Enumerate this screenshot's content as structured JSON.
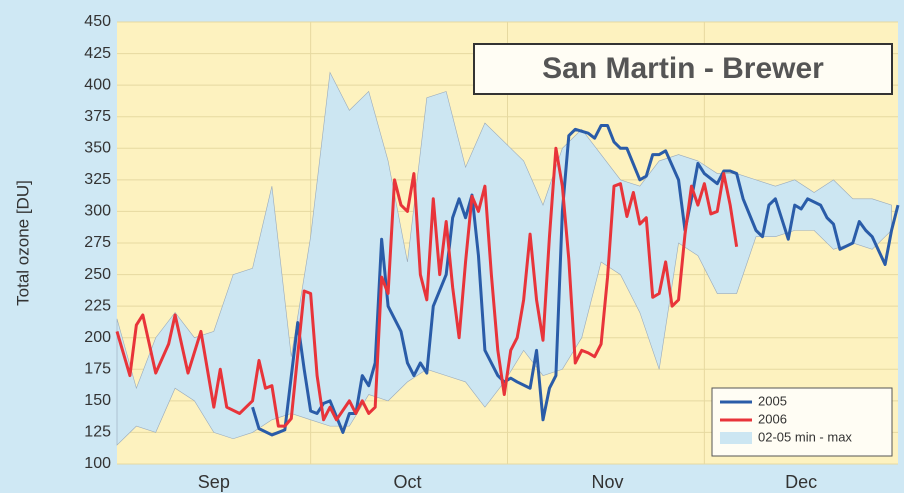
{
  "chart_data": {
    "type": "line",
    "title": "San Martin - Brewer",
    "y_label": "Total ozone [DU]",
    "xlim": [
      0,
      121
    ],
    "xticks": [
      {
        "value": 15,
        "label": "Sep"
      },
      {
        "value": 45,
        "label": "Oct"
      },
      {
        "value": 76,
        "label": "Nov"
      },
      {
        "value": 106,
        "label": "Dec"
      }
    ],
    "ylim": [
      100,
      450
    ],
    "yticks": [
      100,
      125,
      150,
      175,
      200,
      225,
      250,
      275,
      300,
      325,
      350,
      375,
      400,
      425,
      450
    ],
    "grid": true,
    "legend": "lower right",
    "band": {
      "name": "02-05 min - max",
      "color": "#cce6f2",
      "x": [
        0,
        3,
        6,
        9,
        12,
        15,
        18,
        21,
        24,
        27,
        30,
        33,
        36,
        39,
        42,
        45,
        48,
        51,
        54,
        57,
        60,
        63,
        66,
        69,
        72,
        75,
        78,
        81,
        84,
        87,
        90,
        93,
        96,
        99,
        102,
        105,
        108,
        111,
        114,
        117,
        120
      ],
      "max": [
        215,
        160,
        200,
        220,
        200,
        205,
        250,
        255,
        320,
        185,
        280,
        410,
        380,
        395,
        340,
        260,
        390,
        395,
        335,
        370,
        355,
        340,
        305,
        350,
        365,
        345,
        325,
        320,
        340,
        345,
        340,
        330,
        330,
        325,
        320,
        325,
        315,
        325,
        310,
        310,
        305
      ],
      "min": [
        115,
        130,
        125,
        160,
        150,
        125,
        120,
        125,
        135,
        140,
        135,
        130,
        130,
        155,
        150,
        165,
        175,
        170,
        165,
        145,
        165,
        190,
        170,
        175,
        200,
        260,
        250,
        220,
        175,
        275,
        265,
        235,
        235,
        280,
        280,
        285,
        285,
        270,
        275,
        270,
        285
      ]
    },
    "series": [
      {
        "name": "2005",
        "color": "#2a5ca8",
        "x": [
          21,
          22,
          24,
          25,
          26,
          28,
          29,
          30,
          31,
          32,
          33,
          35,
          36,
          37,
          38,
          39,
          40,
          41,
          42,
          44,
          45,
          46,
          47,
          48,
          49,
          51,
          52,
          53,
          54,
          55,
          56,
          57,
          59,
          60,
          61,
          62,
          64,
          65,
          66,
          67,
          68,
          69,
          70,
          71,
          73,
          74,
          75,
          76,
          77,
          78,
          79,
          81,
          82,
          83,
          84,
          85,
          87,
          88,
          89,
          90,
          91,
          93,
          94,
          95,
          96,
          97,
          99,
          100,
          101,
          102,
          104,
          105,
          106,
          107,
          109,
          110,
          111,
          112,
          114,
          115,
          116,
          117,
          119,
          120,
          121
        ],
        "values": [
          145,
          128,
          123,
          125,
          127,
          212,
          175,
          142,
          140,
          148,
          150,
          125,
          140,
          140,
          170,
          162,
          180,
          278,
          225,
          205,
          180,
          170,
          180,
          172,
          225,
          250,
          295,
          310,
          295,
          313,
          265,
          190,
          170,
          165,
          168,
          165,
          160,
          190,
          135,
          160,
          170,
          300,
          360,
          365,
          362,
          358,
          368,
          368,
          355,
          350,
          350,
          325,
          328,
          345,
          345,
          348,
          325,
          285,
          310,
          338,
          330,
          322,
          332,
          332,
          330,
          310,
          285,
          280,
          305,
          310,
          278,
          305,
          302,
          310,
          305,
          295,
          290,
          270,
          275,
          292,
          285,
          280,
          258,
          285,
          305
        ]
      },
      {
        "name": "2006",
        "color": "#e8343a",
        "x": [
          0,
          2,
          3,
          4,
          6,
          8,
          9,
          11,
          13,
          15,
          16,
          17,
          19,
          21,
          22,
          23,
          24,
          25,
          26,
          27,
          29,
          30,
          31,
          32,
          33,
          34,
          36,
          37,
          38,
          39,
          40,
          41,
          42,
          43,
          44,
          45,
          46,
          47,
          48,
          49,
          50,
          51,
          52,
          53,
          54,
          55,
          56,
          57,
          58,
          59,
          60,
          61,
          62,
          63,
          64,
          65,
          66,
          67,
          68,
          69,
          70,
          71,
          72,
          73,
          74,
          75,
          76,
          77,
          78,
          79,
          80,
          81,
          82,
          83,
          84,
          85,
          86,
          87,
          88,
          89,
          90,
          91,
          92,
          93,
          94,
          95,
          96
        ],
        "values": [
          205,
          170,
          210,
          218,
          172,
          195,
          218,
          172,
          205,
          145,
          175,
          145,
          140,
          150,
          182,
          160,
          162,
          130,
          130,
          136,
          237,
          235,
          170,
          135,
          145,
          135,
          150,
          140,
          150,
          140,
          145,
          248,
          235,
          325,
          305,
          300,
          330,
          250,
          230,
          310,
          250,
          292,
          240,
          200,
          260,
          312,
          300,
          320,
          250,
          190,
          155,
          190,
          200,
          230,
          282,
          230,
          198,
          280,
          350,
          320,
          262,
          180,
          190,
          188,
          185,
          195,
          248,
          320,
          322,
          296,
          315,
          290,
          295,
          232,
          235,
          260,
          225,
          230,
          282,
          320,
          305,
          322,
          298,
          300,
          330,
          305,
          272
        ]
      }
    ]
  }
}
